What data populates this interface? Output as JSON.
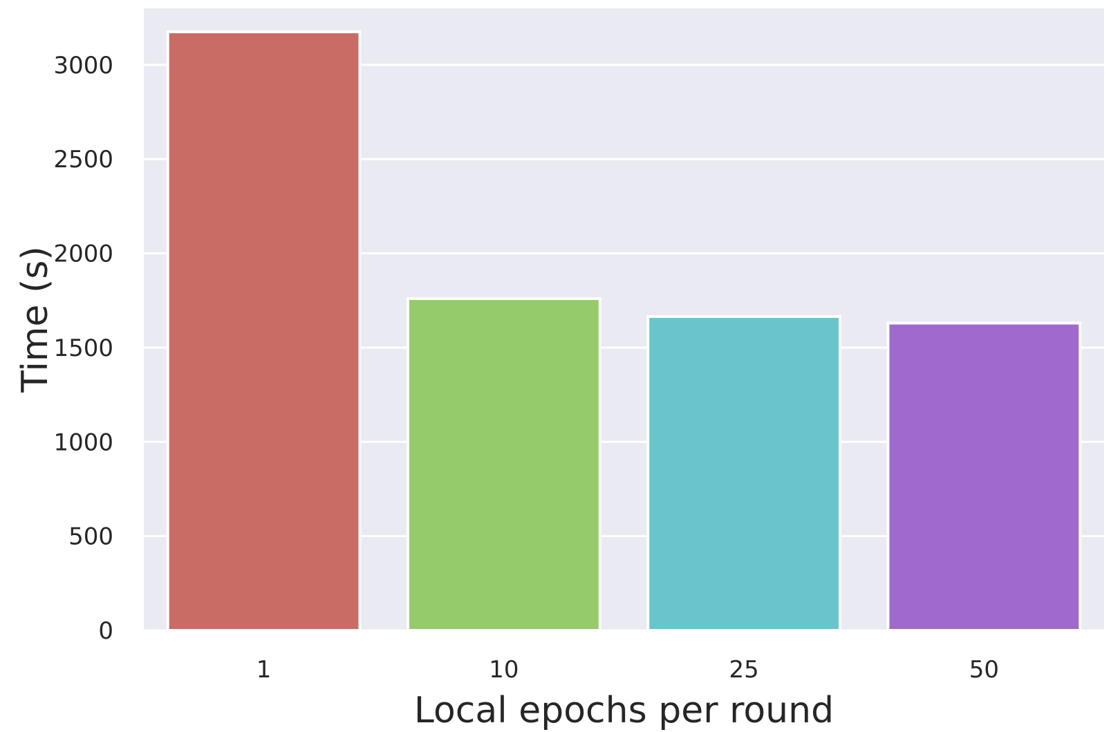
{
  "chart_data": {
    "type": "bar",
    "categories": [
      "1",
      "10",
      "25",
      "50"
    ],
    "values": [
      3175,
      1760,
      1665,
      1630
    ],
    "xlabel": "Local epochs per round",
    "ylabel": "Time (s)",
    "ylim": [
      0,
      3300
    ],
    "yticks": [
      0,
      500,
      1000,
      1500,
      2000,
      2500,
      3000
    ],
    "grid": true,
    "colors": [
      "#c96c66",
      "#95cb6a",
      "#6ac4cb",
      "#9f6acb"
    ],
    "background": "#eaeaf2",
    "grid_color": "#ffffff"
  }
}
